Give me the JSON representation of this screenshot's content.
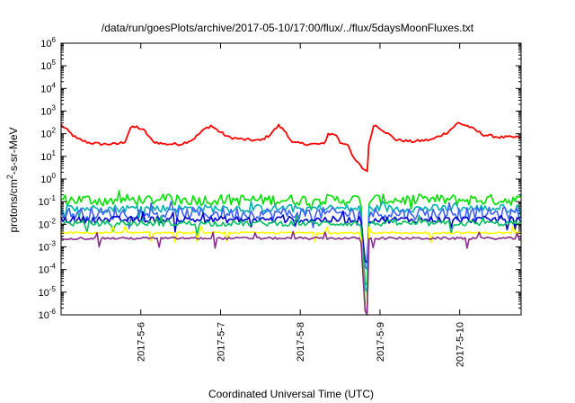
{
  "chart_data": {
    "type": "line",
    "title": "/data/run/goesPlots/archive/2017-05-10/17:00/flux/../flux/5daysMoonFluxes.txt",
    "xlabel": "Coordinated Universal Time (UTC)",
    "ylabel_main": "protons/cm",
    "ylabel_sup": "2",
    "ylabel_tail": "-s-sr-MeV",
    "yscale": "log",
    "ylim": [
      1e-06,
      1000000.0
    ],
    "xlim_days": [
      0,
      5.77
    ],
    "x_start_date": "2017-05-05",
    "x_ticks": [
      {
        "label": "2017-5-6",
        "day": 1
      },
      {
        "label": "2017-5-7",
        "day": 2
      },
      {
        "label": "2017-5-8",
        "day": 3
      },
      {
        "label": "2017-5-9",
        "day": 4
      },
      {
        "label": "2017-5-10",
        "day": 5
      }
    ],
    "y_ticks": [
      {
        "base": "10",
        "exp": "-6",
        "value": -6
      },
      {
        "base": "10",
        "exp": "-5",
        "value": -5
      },
      {
        "base": "10",
        "exp": "-4",
        "value": -4
      },
      {
        "base": "10",
        "exp": "-3",
        "value": -3
      },
      {
        "base": "10",
        "exp": "-2",
        "value": -2
      },
      {
        "base": "10",
        "exp": "-1",
        "value": -1
      },
      {
        "base": "10",
        "exp": "0",
        "value": 0
      },
      {
        "base": "10",
        "exp": "1",
        "value": 1
      },
      {
        "base": "10",
        "exp": "2",
        "value": 2
      },
      {
        "base": "10",
        "exp": "3",
        "value": 3
      },
      {
        "base": "10",
        "exp": "4",
        "value": 4
      },
      {
        "base": "10",
        "exp": "5",
        "value": 5
      },
      {
        "base": "10",
        "exp": "6",
        "value": 6
      }
    ],
    "series": [
      {
        "color": "#ff0000",
        "base": 70,
        "noise": 0.12,
        "points": [
          [
            0.0,
            250
          ],
          [
            0.1,
            120
          ],
          [
            0.2,
            60
          ],
          [
            0.35,
            40
          ],
          [
            0.5,
            35
          ],
          [
            0.7,
            35
          ],
          [
            0.8,
            45
          ],
          [
            0.87,
            180
          ],
          [
            0.95,
            200
          ],
          [
            1.05,
            130
          ],
          [
            1.15,
            45
          ],
          [
            1.3,
            35
          ],
          [
            1.5,
            35
          ],
          [
            1.65,
            55
          ],
          [
            1.8,
            160
          ],
          [
            1.88,
            230
          ],
          [
            1.95,
            150
          ],
          [
            2.1,
            70
          ],
          [
            2.3,
            55
          ],
          [
            2.5,
            50
          ],
          [
            2.6,
            80
          ],
          [
            2.73,
            230
          ],
          [
            2.82,
            120
          ],
          [
            2.9,
            40
          ],
          [
            3.1,
            35
          ],
          [
            3.3,
            35
          ],
          [
            3.35,
            100
          ],
          [
            3.45,
            90
          ],
          [
            3.5,
            40
          ],
          [
            3.6,
            35
          ],
          [
            3.65,
            10
          ],
          [
            3.78,
            3
          ],
          [
            3.84,
            2.2
          ],
          [
            3.86,
            30
          ],
          [
            3.92,
            250
          ],
          [
            4.0,
            180
          ],
          [
            4.2,
            55
          ],
          [
            4.4,
            45
          ],
          [
            4.65,
            55
          ],
          [
            4.85,
            120
          ],
          [
            4.98,
            300
          ],
          [
            5.1,
            220
          ],
          [
            5.3,
            90
          ],
          [
            5.5,
            70
          ],
          [
            5.77,
            70
          ]
        ]
      },
      {
        "color": "#00e000",
        "base": 0.12,
        "noise": 0.5,
        "dropTo": 1e-06
      },
      {
        "color": "#00b0b0",
        "base": 0.05,
        "noise": 0.35,
        "dropTo": 1e-05
      },
      {
        "color": "#4060ff",
        "base": 0.03,
        "noise": 0.55,
        "dropTo": 0.0001
      },
      {
        "color": "#0000cc",
        "base": 0.016,
        "noise": 0.3,
        "dropTo": 0.0002
      },
      {
        "color": "#00c060",
        "base": 0.011,
        "noise": 0.25,
        "dropTo": 2e-05
      },
      {
        "color": "#ffff00",
        "base": 0.0042,
        "noise": 0.08,
        "dropTo": 1e-06
      },
      {
        "color": "#8a2d8a",
        "base": 0.0024,
        "noise": 0.1,
        "dropTo": 1e-06
      }
    ]
  }
}
